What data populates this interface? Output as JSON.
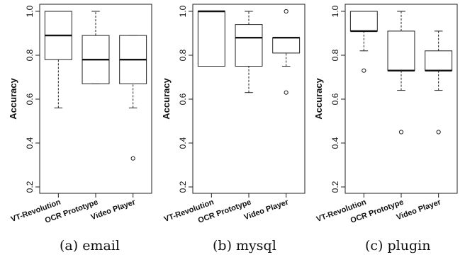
{
  "chart_data": [
    {
      "type": "box",
      "caption": "(a) email",
      "ylabel": "Accuracy",
      "ylim": [
        0.2,
        1.0
      ],
      "yticks": [
        "0.2",
        "0.4",
        "0.6",
        "0.8",
        "1.0"
      ],
      "categories": [
        "VT-Revolution",
        "OCR Prototype",
        "Video Player"
      ],
      "boxes": [
        {
          "whisker_low": 0.56,
          "q1": 0.78,
          "median": 0.89,
          "q3": 1.0,
          "whisker_high": 1.0,
          "outliers": []
        },
        {
          "whisker_low": 0.67,
          "q1": 0.67,
          "median": 0.78,
          "q3": 0.89,
          "whisker_high": 1.0,
          "outliers": []
        },
        {
          "whisker_low": 0.56,
          "q1": 0.67,
          "median": 0.78,
          "q3": 0.89,
          "whisker_high": 0.89,
          "outliers": [
            0.33
          ]
        }
      ]
    },
    {
      "type": "box",
      "caption": "(b) mysql",
      "ylabel": "Accuracy",
      "ylim": [
        0.2,
        1.0
      ],
      "yticks": [
        "0.2",
        "0.4",
        "0.6",
        "0.8",
        "1.0"
      ],
      "categories": [
        "VT-Revolution",
        "OCR Prototype",
        "Video Player"
      ],
      "boxes": [
        {
          "whisker_low": 0.75,
          "q1": 0.75,
          "median": 1.0,
          "q3": 1.0,
          "whisker_high": 1.0,
          "outliers": []
        },
        {
          "whisker_low": 0.63,
          "q1": 0.75,
          "median": 0.88,
          "q3": 0.94,
          "whisker_high": 1.0,
          "outliers": []
        },
        {
          "whisker_low": 0.75,
          "q1": 0.81,
          "median": 0.88,
          "q3": 0.88,
          "whisker_high": 0.88,
          "outliers": [
            1.0,
            0.63
          ]
        }
      ]
    },
    {
      "type": "box",
      "caption": "(c) plugin",
      "ylabel": "Accuracy",
      "ylim": [
        0.2,
        1.0
      ],
      "yticks": [
        "0.2",
        "0.4",
        "0.6",
        "0.8",
        "1.0"
      ],
      "categories": [
        "VT-Revolution",
        "OCR Prototype",
        "Video Player"
      ],
      "boxes": [
        {
          "whisker_low": 0.82,
          "q1": 0.91,
          "median": 0.91,
          "q3": 1.0,
          "whisker_high": 1.0,
          "outliers": [
            0.73
          ]
        },
        {
          "whisker_low": 0.64,
          "q1": 0.73,
          "median": 0.73,
          "q3": 0.91,
          "whisker_high": 1.0,
          "outliers": [
            0.45
          ]
        },
        {
          "whisker_low": 0.64,
          "q1": 0.73,
          "median": 0.73,
          "q3": 0.82,
          "whisker_high": 0.91,
          "outliers": [
            0.45
          ]
        }
      ]
    }
  ]
}
